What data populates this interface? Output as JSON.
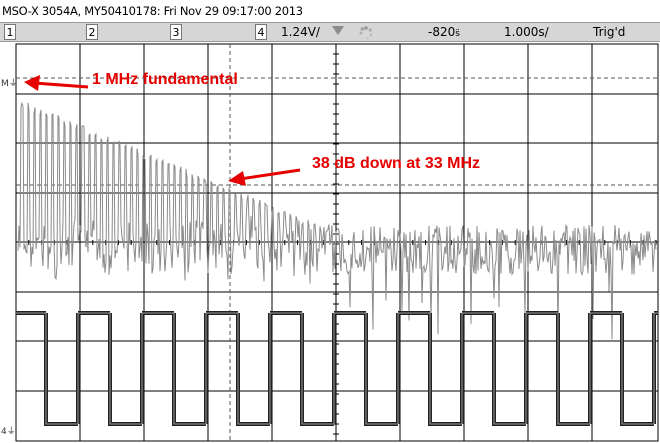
{
  "header": {
    "title": "MSO-X 3054A, MY50410178: Fri Nov 29 09:17:00 2013"
  },
  "status_bar": {
    "channels": [
      "1",
      "2",
      "3",
      "4"
    ],
    "channel_scale": "1.24V/",
    "delay": "-820",
    "delay_unit_glyph": "s̈",
    "timebase": "1.000",
    "timebase_unit_glyph": "s/",
    "trigger_status": "Trig'd"
  },
  "markers": {
    "math_marker": "M",
    "channel4_marker": "4"
  },
  "annotations": {
    "fundamental": "1 MHz fundamental",
    "harmonic": "38 dB down at 33 MHz"
  },
  "colors": {
    "annotation": "#e60000",
    "trace": "#808080",
    "grid": "#000000",
    "status_bar_bg": "#d6d6d6"
  },
  "icons": [
    "trigger-edge-icon",
    "acquisition-spinner-icon",
    "ground-marker-icon"
  ]
}
